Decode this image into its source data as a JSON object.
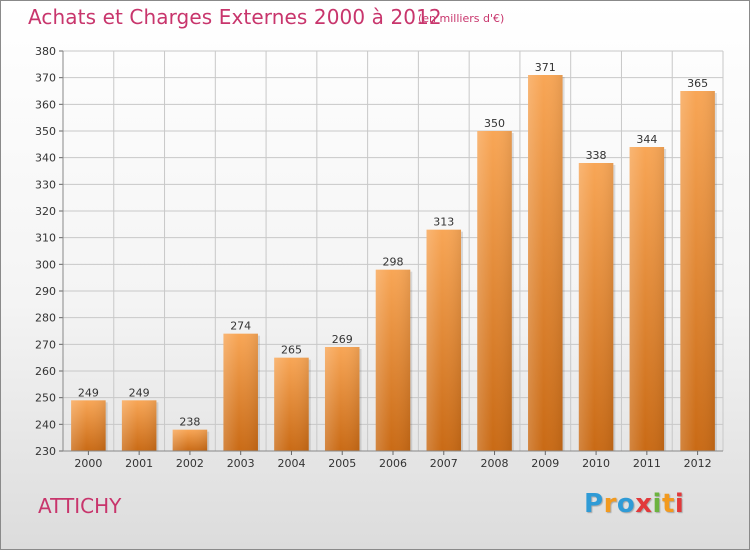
{
  "header": {
    "title": "Achats et Charges Externes 2000 à 2012",
    "unit": "(en milliers d'€)"
  },
  "footer": {
    "commune": "ATTICHY",
    "logo_text": "Proxiti"
  },
  "colors": {
    "title": "#c8356c",
    "bar_top": "#f8a656",
    "bar_bottom": "#c96a15",
    "grid": "#c8c8c8",
    "axis_text": "#333333"
  },
  "chart_data": {
    "type": "bar",
    "title": "Achats et Charges Externes 2000 à 2012",
    "subtitle": "(en milliers d'€)",
    "xlabel": "",
    "ylabel": "",
    "categories": [
      "2000",
      "2001",
      "2002",
      "2003",
      "2004",
      "2005",
      "2006",
      "2007",
      "2008",
      "2009",
      "2010",
      "2011",
      "2012"
    ],
    "values": [
      249,
      249,
      238,
      274,
      265,
      269,
      298,
      313,
      350,
      371,
      338,
      344,
      365
    ],
    "data_labels": [
      "249",
      "249",
      "238",
      "274",
      "265",
      "269",
      "298",
      "313",
      "350",
      "371",
      "338",
      "344",
      "365"
    ],
    "ylim": [
      230,
      380
    ],
    "yticks": [
      230,
      240,
      250,
      260,
      270,
      280,
      290,
      300,
      310,
      320,
      330,
      340,
      350,
      360,
      370,
      380
    ],
    "grid": true,
    "legend": "none"
  }
}
